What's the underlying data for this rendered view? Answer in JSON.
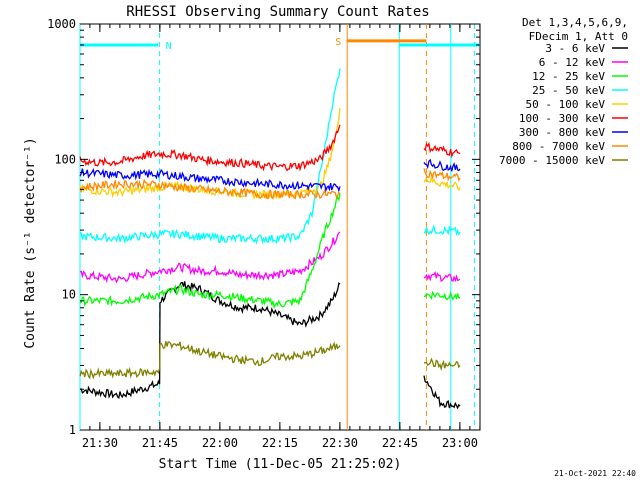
{
  "chart_data": {
    "type": "line",
    "title": "RHESSI Observing Summary Count Rates",
    "xlabel": "Start Time (11-Dec-05 21:25:02)",
    "ylabel": "Count Rate (s⁻¹ detector⁻¹)",
    "y_scale": "log",
    "ylim": [
      1,
      1000
    ],
    "xlim_minutes": [
      0,
      100
    ],
    "x_ticks": [
      {
        "label": "21:30",
        "minute": 4.97
      },
      {
        "label": "21:45",
        "minute": 19.97
      },
      {
        "label": "22:00",
        "minute": 34.97
      },
      {
        "label": "22:15",
        "minute": 49.97
      },
      {
        "label": "22:30",
        "minute": 64.97
      },
      {
        "label": "22:45",
        "minute": 79.97
      },
      {
        "label": "23:00",
        "minute": 94.97
      }
    ],
    "y_ticks": [
      "1",
      "10",
      "100",
      "1000"
    ],
    "legend_header": [
      "Det 1,3,4,5,6,9,",
      "FDecim 1, Att 0"
    ],
    "legend_placement": "right",
    "footer_date": "21-Oct-2021 22:40",
    "series": [
      {
        "name": "3 - 6 keV",
        "color": "#000000",
        "points": [
          [
            0,
            2.0
          ],
          [
            10,
            1.8
          ],
          [
            19.9,
            2.2
          ],
          [
            20,
            9
          ],
          [
            25,
            12
          ],
          [
            30,
            11
          ],
          [
            35,
            9
          ],
          [
            40,
            8
          ],
          [
            45,
            8
          ],
          [
            50,
            7
          ],
          [
            55,
            6
          ],
          [
            60,
            7
          ],
          [
            63,
            9
          ],
          [
            65,
            12
          ],
          [
            86,
            2.5
          ],
          [
            88,
            2
          ],
          [
            90,
            1.6
          ],
          [
            95,
            1.5
          ]
        ]
      },
      {
        "name": "6 - 12 keV",
        "color": "#ff00ff",
        "points": [
          [
            0,
            14
          ],
          [
            10,
            13
          ],
          [
            20,
            15
          ],
          [
            25,
            16
          ],
          [
            30,
            15
          ],
          [
            35,
            15
          ],
          [
            40,
            14
          ],
          [
            45,
            14
          ],
          [
            50,
            14
          ],
          [
            55,
            15
          ],
          [
            60,
            19
          ],
          [
            63,
            24
          ],
          [
            65,
            29
          ],
          [
            86,
            14
          ],
          [
            90,
            13.5
          ],
          [
            95,
            13
          ]
        ]
      },
      {
        "name": "12 - 25 keV",
        "color": "#00ff00",
        "points": [
          [
            0,
            9
          ],
          [
            10,
            9
          ],
          [
            20,
            10
          ],
          [
            25,
            11
          ],
          [
            30,
            10
          ],
          [
            35,
            10
          ],
          [
            40,
            9.5
          ],
          [
            45,
            9
          ],
          [
            50,
            8.5
          ],
          [
            55,
            9
          ],
          [
            58,
            15
          ],
          [
            61,
            28
          ],
          [
            65,
            56
          ],
          [
            86,
            10
          ],
          [
            90,
            10
          ],
          [
            95,
            9.5
          ]
        ]
      },
      {
        "name": "25 - 50 keV",
        "color": "#00ffff",
        "points": [
          [
            0,
            27
          ],
          [
            10,
            26
          ],
          [
            20,
            28
          ],
          [
            25,
            28
          ],
          [
            30,
            27
          ],
          [
            35,
            26
          ],
          [
            40,
            26
          ],
          [
            45,
            26
          ],
          [
            50,
            26
          ],
          [
            55,
            27
          ],
          [
            58,
            40
          ],
          [
            61,
            110
          ],
          [
            63,
            250
          ],
          [
            65,
            470
          ],
          [
            86,
            30
          ],
          [
            90,
            30
          ],
          [
            95,
            29
          ]
        ]
      },
      {
        "name": "50 - 100 keV",
        "color": "#ffcc00",
        "points": [
          [
            0,
            60
          ],
          [
            10,
            57
          ],
          [
            20,
            62
          ],
          [
            25,
            63
          ],
          [
            30,
            60
          ],
          [
            35,
            58
          ],
          [
            40,
            56
          ],
          [
            45,
            55
          ],
          [
            50,
            55
          ],
          [
            55,
            56
          ],
          [
            60,
            62
          ],
          [
            62,
            90
          ],
          [
            64,
            150
          ],
          [
            65,
            240
          ],
          [
            86,
            72
          ],
          [
            90,
            67
          ],
          [
            95,
            62
          ]
        ]
      },
      {
        "name": "100 - 300 keV",
        "color": "#ff0000",
        "points": [
          [
            0,
            98
          ],
          [
            5,
            94
          ],
          [
            10,
            96
          ],
          [
            15,
            105
          ],
          [
            20,
            110
          ],
          [
            25,
            108
          ],
          [
            30,
            100
          ],
          [
            35,
            96
          ],
          [
            40,
            94
          ],
          [
            45,
            90
          ],
          [
            50,
            88
          ],
          [
            55,
            90
          ],
          [
            60,
            100
          ],
          [
            63,
            130
          ],
          [
            65,
            180
          ],
          [
            86,
            125
          ],
          [
            90,
            118
          ],
          [
            95,
            110
          ]
        ]
      },
      {
        "name": "300 - 800 keV",
        "color": "#0000ff",
        "points": [
          [
            0,
            80
          ],
          [
            10,
            76
          ],
          [
            20,
            78
          ],
          [
            25,
            75
          ],
          [
            30,
            72
          ],
          [
            35,
            70
          ],
          [
            40,
            68
          ],
          [
            45,
            66
          ],
          [
            50,
            65
          ],
          [
            55,
            64
          ],
          [
            60,
            63
          ],
          [
            65,
            63
          ],
          [
            86,
            95
          ],
          [
            90,
            90
          ],
          [
            95,
            85
          ]
        ]
      },
      {
        "name": "800 - 7000 keV",
        "color": "#ff8800",
        "points": [
          [
            0,
            62
          ],
          [
            10,
            66
          ],
          [
            20,
            65
          ],
          [
            25,
            62
          ],
          [
            30,
            60
          ],
          [
            35,
            58
          ],
          [
            40,
            57
          ],
          [
            45,
            55
          ],
          [
            50,
            55
          ],
          [
            55,
            55
          ],
          [
            60,
            55
          ],
          [
            65,
            56
          ],
          [
            86,
            80
          ],
          [
            90,
            76
          ],
          [
            95,
            73
          ]
        ]
      },
      {
        "name": "7000 - 15000 keV",
        "color": "#808000",
        "points": [
          [
            0,
            2.6
          ],
          [
            10,
            2.6
          ],
          [
            19.9,
            2.7
          ],
          [
            20,
            4.3
          ],
          [
            25,
            4.2
          ],
          [
            30,
            3.8
          ],
          [
            35,
            3.5
          ],
          [
            40,
            3.3
          ],
          [
            45,
            3.2
          ],
          [
            50,
            3.5
          ],
          [
            55,
            3.5
          ],
          [
            60,
            3.8
          ],
          [
            65,
            4.2
          ],
          [
            86,
            3.3
          ],
          [
            90,
            3.0
          ],
          [
            95,
            3.0
          ]
        ]
      }
    ],
    "bar_segments": [
      {
        "label": "",
        "color": "#00ffff",
        "x_start": 0,
        "x_end": 19.5,
        "y": 700
      },
      {
        "label": "N",
        "color": "#00ffff",
        "x_start": 19.9,
        "x_end": 19.9,
        "y": 700
      },
      {
        "label": "S",
        "color": "#ff8800",
        "x_start": 66.8,
        "x_end": 86.6,
        "y": 750
      },
      {
        "label": "",
        "color": "#00ffff",
        "x_start": 79.8,
        "x_end": 92.7,
        "y": 700
      },
      {
        "label": "",
        "color": "#00ffff",
        "x_start": 92.7,
        "x_end": 100,
        "y": 700
      }
    ],
    "vertical_lines": [
      {
        "color": "#00ffff",
        "minute": 0,
        "style": "solid"
      },
      {
        "color": "#00ffff",
        "minute": 19.9,
        "style": "dashed"
      },
      {
        "color": "#ff8800",
        "minute": 66.8,
        "style": "solid"
      },
      {
        "color": "#00ffff",
        "minute": 79.8,
        "style": "solid"
      },
      {
        "color": "#ff8800",
        "minute": 86.6,
        "style": "dashed"
      },
      {
        "color": "#00ffff",
        "minute": 92.7,
        "style": "solid"
      },
      {
        "color": "#00ffff",
        "minute": 98.6,
        "style": "dashed"
      }
    ],
    "gaps": [
      [
        65,
        86
      ]
    ]
  }
}
